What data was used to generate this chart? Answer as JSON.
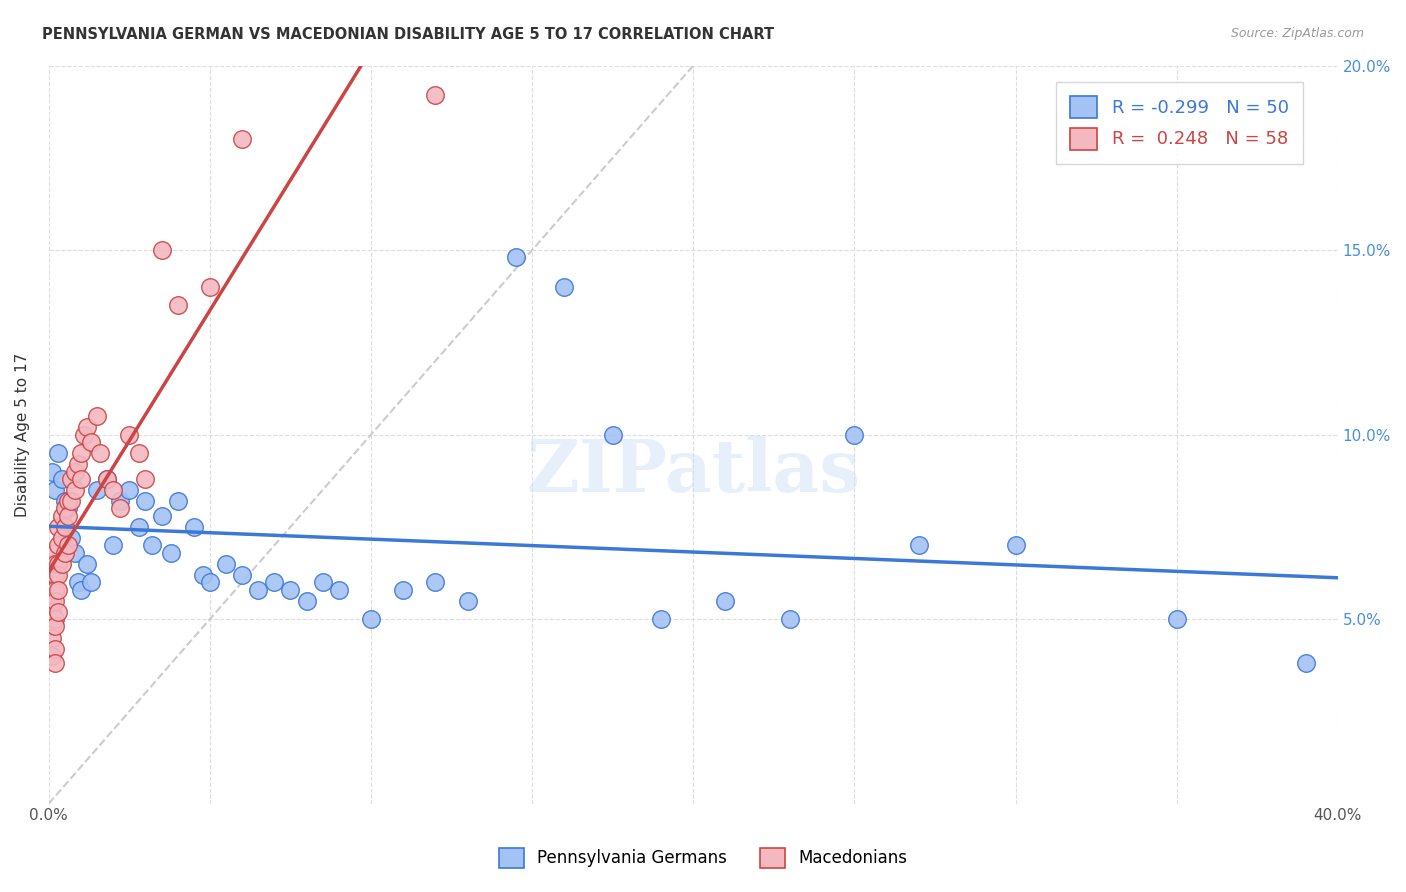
{
  "title": "PENNSYLVANIA GERMAN VS MACEDONIAN DISABILITY AGE 5 TO 17 CORRELATION CHART",
  "source": "Source: ZipAtlas.com",
  "ylabel": "Disability Age 5 to 17",
  "xlim": [
    0.0,
    0.4
  ],
  "ylim": [
    0.0,
    0.2
  ],
  "color_blue": "#a4c2f4",
  "color_pink": "#f4b8c1",
  "color_blue_line": "#3c78d8",
  "color_pink_line": "#cc4444",
  "color_diag": "#cccccc",
  "R_blue": -0.299,
  "N_blue": 50,
  "R_pink": 0.248,
  "N_pink": 58,
  "legend_labels": [
    "Pennsylvania Germans",
    "Macedonians"
  ],
  "watermark": "ZIPatlas",
  "blue_x": [
    0.001,
    0.002,
    0.003,
    0.004,
    0.005,
    0.005,
    0.006,
    0.007,
    0.008,
    0.009,
    0.01,
    0.012,
    0.013,
    0.015,
    0.018,
    0.02,
    0.022,
    0.025,
    0.028,
    0.03,
    0.032,
    0.035,
    0.038,
    0.04,
    0.045,
    0.048,
    0.05,
    0.055,
    0.06,
    0.065,
    0.07,
    0.075,
    0.08,
    0.085,
    0.09,
    0.1,
    0.11,
    0.12,
    0.13,
    0.145,
    0.16,
    0.175,
    0.19,
    0.21,
    0.23,
    0.25,
    0.27,
    0.3,
    0.35,
    0.39
  ],
  "blue_y": [
    0.09,
    0.085,
    0.095,
    0.088,
    0.082,
    0.075,
    0.08,
    0.072,
    0.068,
    0.06,
    0.058,
    0.065,
    0.06,
    0.085,
    0.088,
    0.07,
    0.082,
    0.085,
    0.075,
    0.082,
    0.07,
    0.078,
    0.068,
    0.082,
    0.075,
    0.062,
    0.06,
    0.065,
    0.062,
    0.058,
    0.06,
    0.058,
    0.055,
    0.06,
    0.058,
    0.05,
    0.058,
    0.06,
    0.055,
    0.148,
    0.14,
    0.1,
    0.05,
    0.055,
    0.05,
    0.1,
    0.07,
    0.07,
    0.05,
    0.038
  ],
  "pink_x": [
    0.0,
    0.0,
    0.0,
    0.001,
    0.001,
    0.001,
    0.001,
    0.001,
    0.001,
    0.001,
    0.001,
    0.002,
    0.002,
    0.002,
    0.002,
    0.002,
    0.002,
    0.002,
    0.002,
    0.002,
    0.003,
    0.003,
    0.003,
    0.003,
    0.003,
    0.003,
    0.004,
    0.004,
    0.004,
    0.005,
    0.005,
    0.005,
    0.006,
    0.006,
    0.006,
    0.007,
    0.007,
    0.008,
    0.008,
    0.009,
    0.01,
    0.01,
    0.011,
    0.012,
    0.013,
    0.015,
    0.016,
    0.018,
    0.02,
    0.022,
    0.025,
    0.028,
    0.03,
    0.035,
    0.04,
    0.05,
    0.06,
    0.12
  ],
  "pink_y": [
    0.062,
    0.06,
    0.055,
    0.065,
    0.062,
    0.058,
    0.055,
    0.052,
    0.048,
    0.045,
    0.04,
    0.068,
    0.065,
    0.062,
    0.058,
    0.055,
    0.05,
    0.048,
    0.042,
    0.038,
    0.075,
    0.07,
    0.065,
    0.062,
    0.058,
    0.052,
    0.078,
    0.072,
    0.065,
    0.08,
    0.075,
    0.068,
    0.082,
    0.078,
    0.07,
    0.088,
    0.082,
    0.09,
    0.085,
    0.092,
    0.095,
    0.088,
    0.1,
    0.102,
    0.098,
    0.105,
    0.095,
    0.088,
    0.085,
    0.08,
    0.1,
    0.095,
    0.088,
    0.15,
    0.135,
    0.14,
    0.18,
    0.192
  ]
}
